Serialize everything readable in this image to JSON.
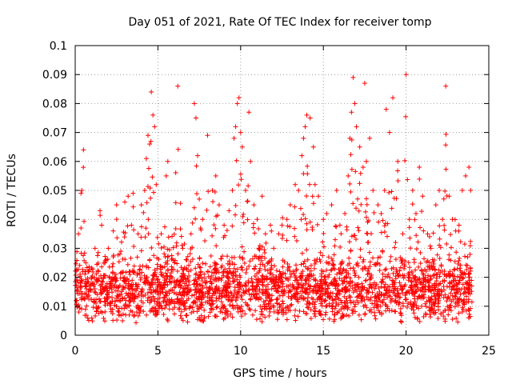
{
  "chart_data": {
    "type": "scatter",
    "title": "Day 051 of 2021, Rate Of TEC Index for receiver tomp",
    "xlabel": "GPS time / hours",
    "ylabel": "ROTI / TECUs",
    "xlim": [
      0,
      25
    ],
    "ylim": [
      0,
      0.1
    ],
    "x_ticks": [
      "0",
      "5",
      "10",
      "15",
      "20",
      "25"
    ],
    "y_ticks": [
      "0",
      "0.01",
      "0.02",
      "0.03",
      "0.04",
      "0.05",
      "0.06",
      "0.07",
      "0.08",
      "0.09",
      "0.1"
    ],
    "grid": true,
    "marker": "+",
    "marker_color": "#ff0000",
    "series": [
      {
        "x": [
          0.1,
          0.2,
          0.3,
          0.35,
          0.4,
          0.5,
          0.6,
          0.8,
          1.0,
          1.2,
          1.5,
          1.6,
          1.8,
          2.0,
          2.3,
          2.5,
          2.7,
          3.0,
          3.2,
          3.4,
          3.5,
          3.8,
          4.0,
          4.2,
          4.3,
          4.4,
          4.5,
          4.6,
          4.7,
          4.8,
          4.9,
          5.2,
          5.5,
          5.6,
          6.0,
          6.2,
          6.5,
          7.0,
          7.2,
          7.3,
          7.4,
          7.5,
          7.7,
          8.0,
          8.3,
          8.5,
          8.7,
          9.0,
          9.3,
          9.5,
          9.6,
          9.7,
          9.8,
          9.9,
          10.0,
          10.1,
          10.3,
          10.5,
          10.6,
          10.8,
          11.0,
          11.3,
          11.5,
          11.8,
          12.0,
          12.3,
          12.5,
          12.8,
          13.0,
          13.3,
          13.5,
          13.7,
          13.8,
          13.9,
          14.0,
          14.2,
          14.4,
          14.5,
          14.7,
          15.0,
          15.2,
          15.5,
          15.8,
          16.0,
          16.3,
          16.5,
          16.6,
          16.7,
          16.8,
          16.9,
          17.0,
          17.2,
          17.4,
          17.5,
          17.6,
          17.8,
          18.0,
          18.3,
          18.5,
          18.7,
          18.8,
          19.0,
          19.2,
          19.5,
          19.8,
          20.0,
          20.2,
          20.4,
          20.6,
          20.8,
          21.0,
          21.3,
          21.5,
          21.8,
          22.0,
          22.2,
          22.4,
          22.6,
          22.8,
          23.0,
          23.2,
          23.4,
          23.6,
          23.8,
          23.9
        ],
        "y": [
          0.012,
          0.035,
          0.018,
          0.049,
          0.05,
          0.064,
          0.022,
          0.015,
          0.02,
          0.03,
          0.043,
          0.038,
          0.025,
          0.03,
          0.036,
          0.045,
          0.028,
          0.046,
          0.048,
          0.038,
          0.049,
          0.035,
          0.045,
          0.05,
          0.061,
          0.069,
          0.066,
          0.084,
          0.076,
          0.072,
          0.052,
          0.035,
          0.055,
          0.06,
          0.025,
          0.086,
          0.03,
          0.035,
          0.08,
          0.075,
          0.062,
          0.047,
          0.04,
          0.069,
          0.05,
          0.055,
          0.045,
          0.038,
          0.043,
          0.05,
          0.068,
          0.072,
          0.08,
          0.082,
          0.07,
          0.065,
          0.05,
          0.077,
          0.06,
          0.045,
          0.04,
          0.048,
          0.035,
          0.038,
          0.03,
          0.035,
          0.038,
          0.04,
          0.045,
          0.052,
          0.05,
          0.062,
          0.068,
          0.072,
          0.076,
          0.075,
          0.065,
          0.052,
          0.048,
          0.04,
          0.042,
          0.045,
          0.05,
          0.038,
          0.042,
          0.055,
          0.068,
          0.077,
          0.089,
          0.08,
          0.072,
          0.065,
          0.058,
          0.087,
          0.06,
          0.068,
          0.05,
          0.045,
          0.042,
          0.05,
          0.078,
          0.07,
          0.082,
          0.06,
          0.035,
          0.09,
          0.04,
          0.05,
          0.042,
          0.058,
          0.048,
          0.035,
          0.03,
          0.045,
          0.05,
          0.04,
          0.086,
          0.048,
          0.04,
          0.036,
          0.038,
          0.05,
          0.055,
          0.058,
          0.05
        ]
      }
    ]
  }
}
